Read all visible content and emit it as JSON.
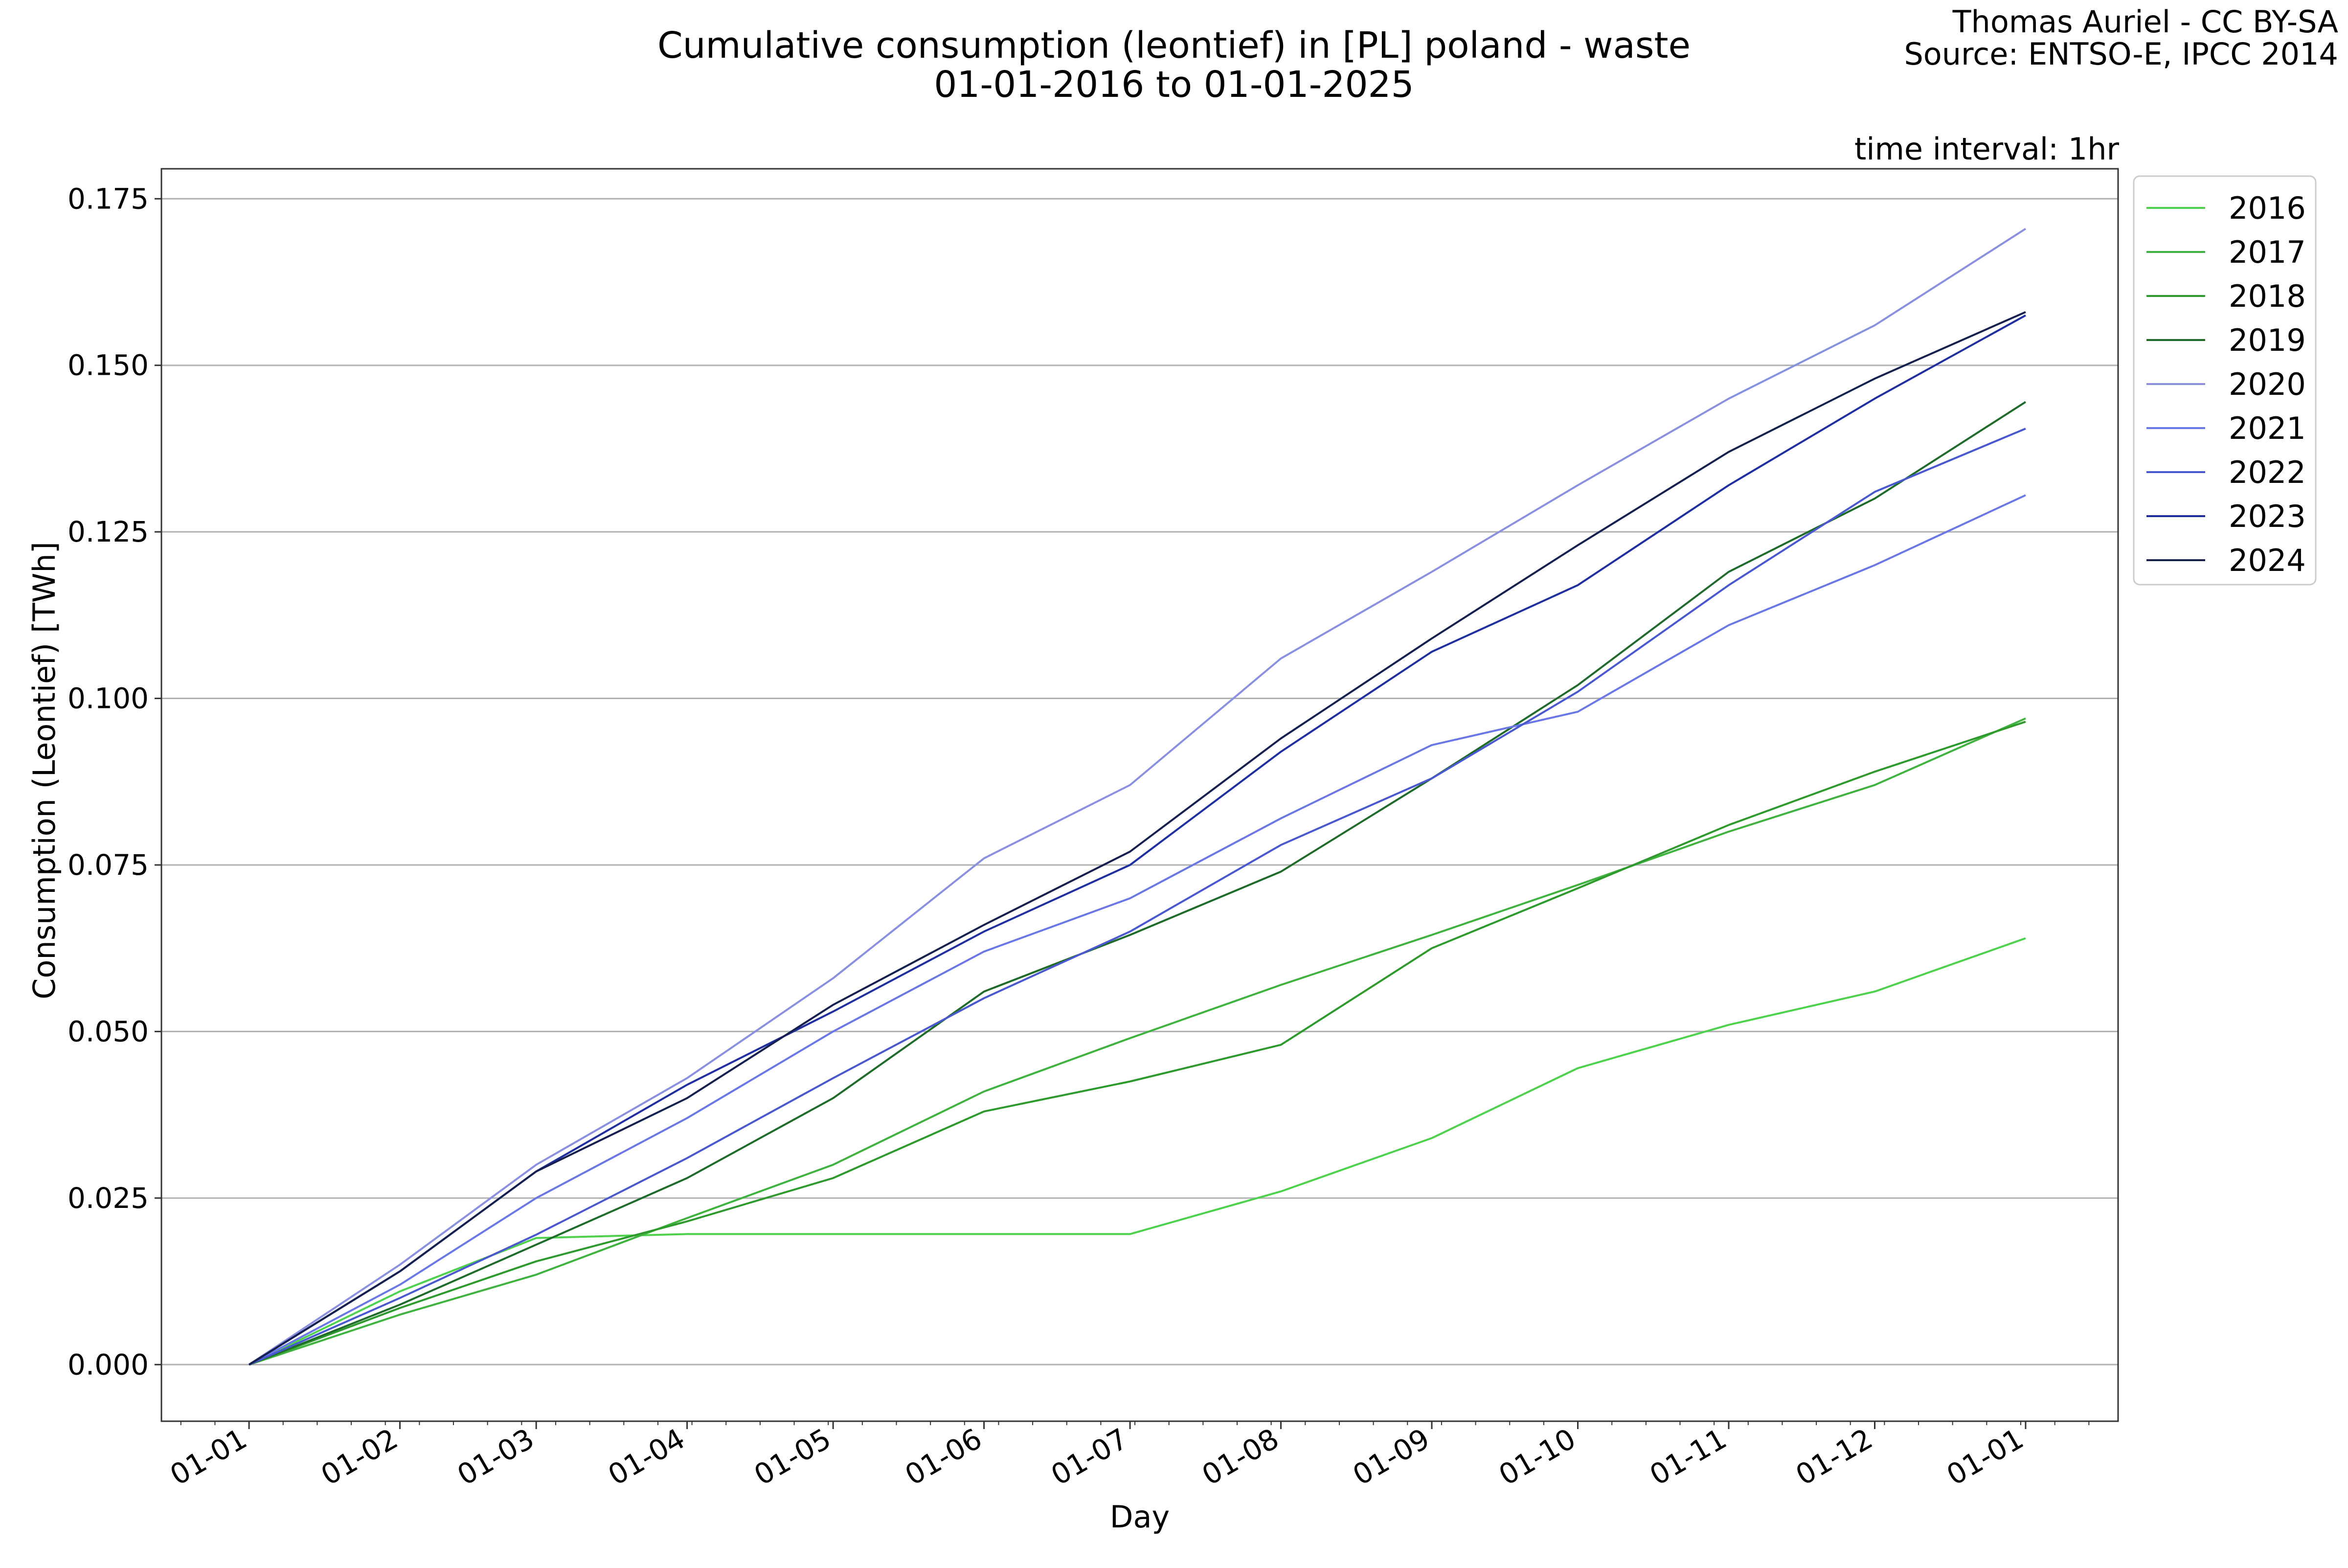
{
  "chart_data": {
    "type": "line",
    "title": "Cumulative consumption (leontief) in [PL] poland - waste",
    "subtitle": "01-01-2016 to 01-01-2025",
    "credit_line1": "Thomas Auriel - CC BY-SA",
    "credit_line2": "Source: ENTSO-E, IPCC 2014",
    "interval_note": "time interval: 1hr",
    "xlabel": "Day",
    "ylabel": "Consumption (Leontief) [TWh]",
    "x_ticks": [
      "01-01",
      "01-02",
      "01-03",
      "01-04",
      "01-05",
      "01-06",
      "01-07",
      "01-08",
      "01-09",
      "01-10",
      "01-11",
      "01-12",
      "01-01"
    ],
    "y_ticks": [
      "0.000",
      "0.025",
      "0.050",
      "0.075",
      "0.100",
      "0.125",
      "0.150",
      "0.175"
    ],
    "xlim": [
      -18,
      384
    ],
    "ylim": [
      -0.0085,
      0.1795
    ],
    "grid": "horizontal",
    "legend_position": "upper-right-outside",
    "x": [
      0,
      31,
      59,
      90,
      120,
      151,
      181,
      212,
      243,
      273,
      304,
      334,
      365
    ],
    "series": [
      {
        "name": "2016",
        "color": "#4ed24e",
        "values": [
          0,
          0.011,
          0.019,
          0.0196,
          0.0196,
          0.0196,
          0.0196,
          0.026,
          0.034,
          0.0445,
          0.051,
          0.056,
          0.064
        ]
      },
      {
        "name": "2017",
        "color": "#3fb23f",
        "values": [
          0,
          0.0075,
          0.0135,
          0.022,
          0.03,
          0.041,
          0.049,
          0.057,
          0.0645,
          0.072,
          0.08,
          0.087,
          0.097
        ]
      },
      {
        "name": "2018",
        "color": "#2e9a2e",
        "values": [
          0,
          0.0085,
          0.0155,
          0.0215,
          0.028,
          0.038,
          0.0425,
          0.048,
          0.0625,
          0.0715,
          0.081,
          0.089,
          0.0965
        ]
      },
      {
        "name": "2019",
        "color": "#1f6b2a",
        "values": [
          0,
          0.009,
          0.018,
          0.028,
          0.04,
          0.056,
          0.0645,
          0.074,
          0.088,
          0.102,
          0.119,
          0.13,
          0.1445
        ]
      },
      {
        "name": "2020",
        "color": "#8a8fe0",
        "values": [
          0,
          0.015,
          0.03,
          0.043,
          0.058,
          0.076,
          0.087,
          0.106,
          0.119,
          0.132,
          0.145,
          0.156,
          0.1705
        ]
      },
      {
        "name": "2021",
        "color": "#6a78e6",
        "values": [
          0,
          0.012,
          0.025,
          0.037,
          0.05,
          0.062,
          0.07,
          0.082,
          0.093,
          0.098,
          0.111,
          0.12,
          0.1305
        ]
      },
      {
        "name": "2022",
        "color": "#4a58d0",
        "values": [
          0,
          0.01,
          0.0195,
          0.031,
          0.043,
          0.055,
          0.065,
          0.078,
          0.088,
          0.101,
          0.117,
          0.131,
          0.1405
        ]
      },
      {
        "name": "2023",
        "color": "#1f2fa0",
        "values": [
          0,
          0.014,
          0.029,
          0.042,
          0.053,
          0.065,
          0.075,
          0.092,
          0.107,
          0.117,
          0.132,
          0.145,
          0.1575
        ]
      },
      {
        "name": "2024",
        "color": "#15204f",
        "values": [
          0,
          0.014,
          0.029,
          0.04,
          0.054,
          0.066,
          0.077,
          0.094,
          0.109,
          0.123,
          0.137,
          0.148,
          0.158
        ]
      }
    ]
  }
}
